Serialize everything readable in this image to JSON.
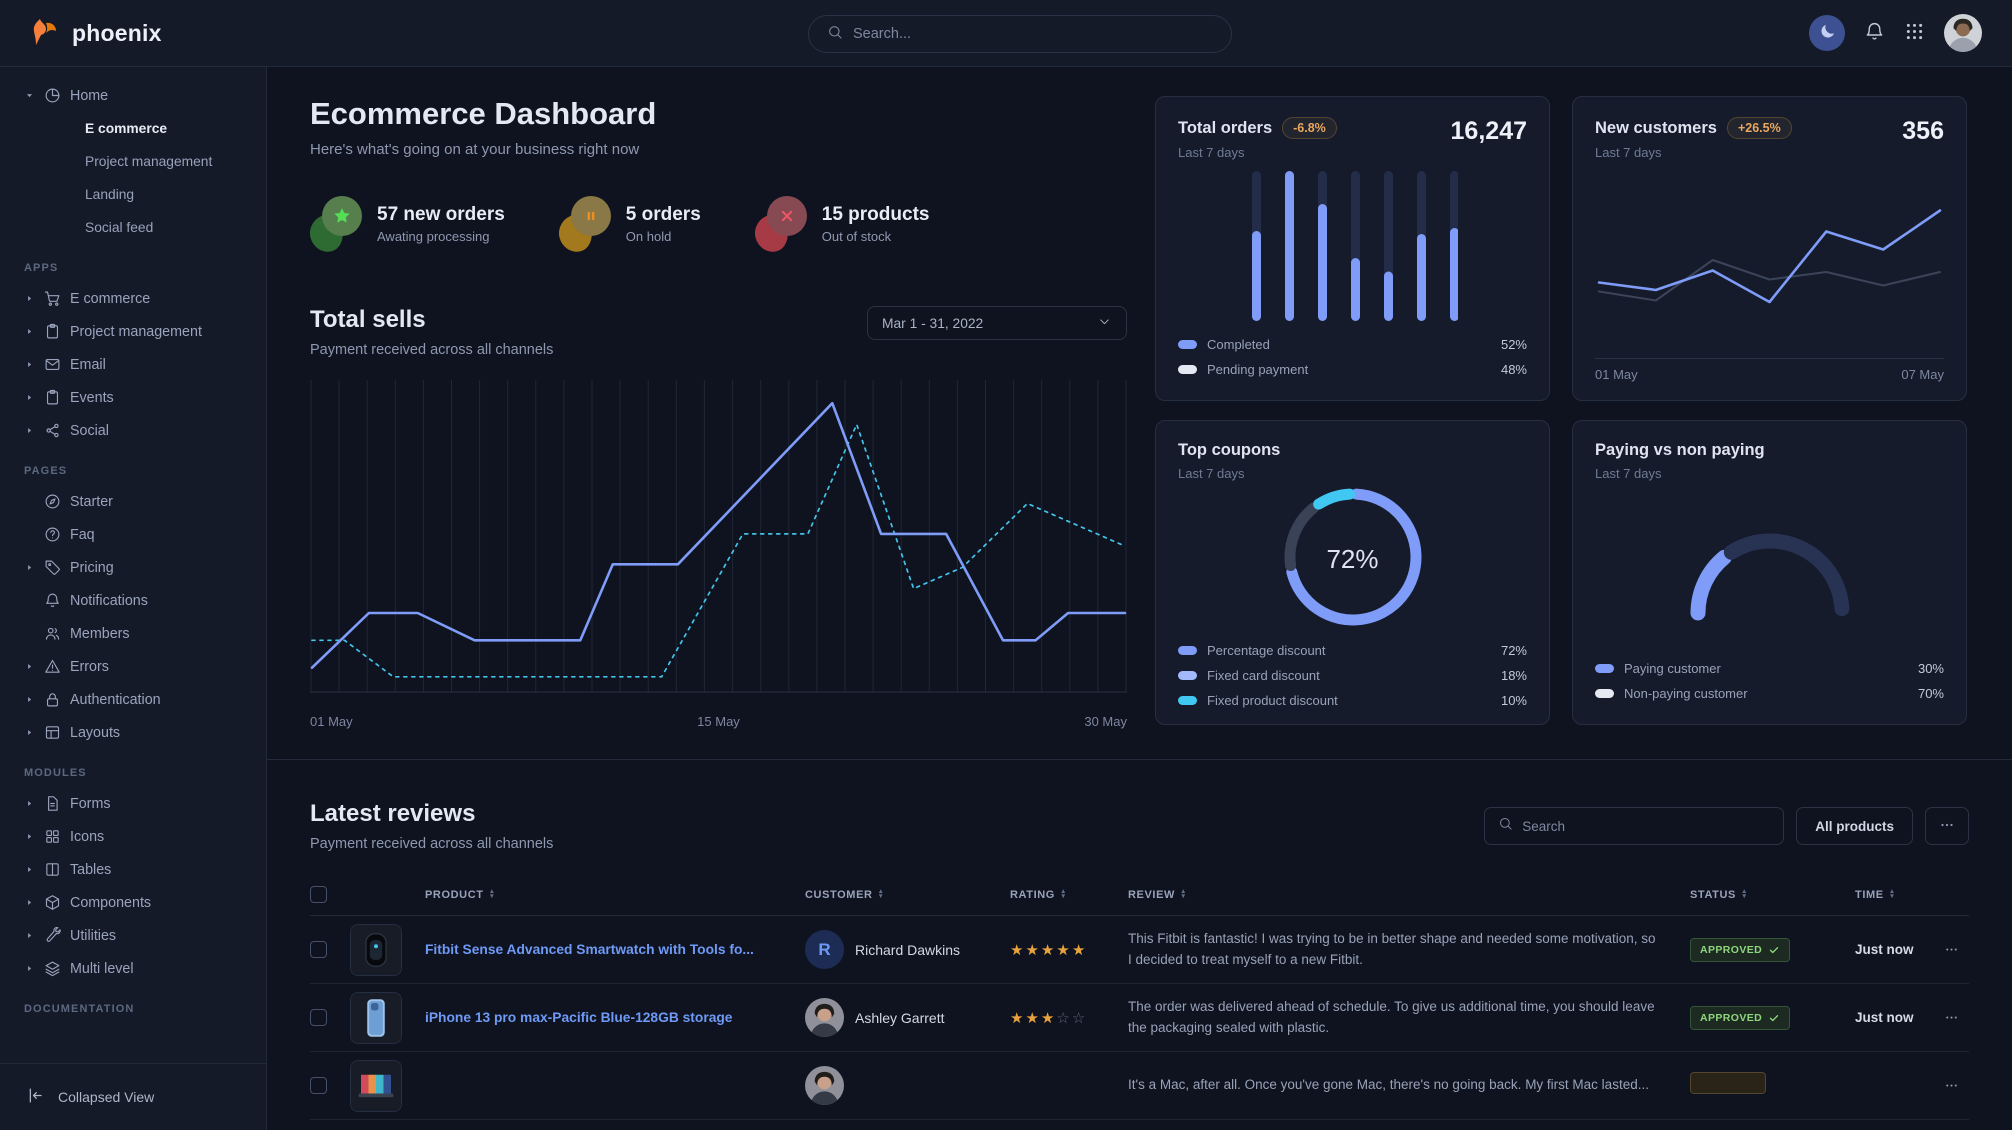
{
  "topbar": {
    "brand": "phoenix",
    "search_placeholder": "Search...",
    "theme_button_color": "#3d5192",
    "icons": [
      "moon-icon",
      "bell-icon",
      "grid-9-icon",
      "user-avatar"
    ]
  },
  "sidebar": {
    "groups": [
      {
        "label": "",
        "items": [
          {
            "label": "Home",
            "icon": "pie-chart",
            "caret": "down",
            "children": [
              {
                "label": "E commerce",
                "active": true
              },
              {
                "label": "Project management",
                "active": false
              },
              {
                "label": "Landing",
                "active": false
              },
              {
                "label": "Social feed",
                "active": false
              }
            ]
          }
        ]
      },
      {
        "label": "APPS",
        "items": [
          {
            "label": "E commerce",
            "icon": "shopping-cart",
            "caret": "right"
          },
          {
            "label": "Project management",
            "icon": "clipboard",
            "caret": "right"
          },
          {
            "label": "Email",
            "icon": "mail",
            "caret": "right"
          },
          {
            "label": "Events",
            "icon": "clipboard",
            "caret": "right"
          },
          {
            "label": "Social",
            "icon": "share",
            "caret": "right"
          }
        ]
      },
      {
        "label": "PAGES",
        "items": [
          {
            "label": "Starter",
            "icon": "compass",
            "caret": ""
          },
          {
            "label": "Faq",
            "icon": "help-circle",
            "caret": ""
          },
          {
            "label": "Pricing",
            "icon": "tag",
            "caret": "right"
          },
          {
            "label": "Notifications",
            "icon": "bell",
            "caret": ""
          },
          {
            "label": "Members",
            "icon": "users",
            "caret": ""
          },
          {
            "label": "Errors",
            "icon": "alert-triangle",
            "caret": "right"
          },
          {
            "label": "Authentication",
            "icon": "lock",
            "caret": "right"
          },
          {
            "label": "Layouts",
            "icon": "layout",
            "caret": "right"
          }
        ]
      },
      {
        "label": "MODULES",
        "items": [
          {
            "label": "Forms",
            "icon": "file-text",
            "caret": "right"
          },
          {
            "label": "Icons",
            "icon": "grid-4",
            "caret": "right"
          },
          {
            "label": "Tables",
            "icon": "columns",
            "caret": "right"
          },
          {
            "label": "Components",
            "icon": "box",
            "caret": "right"
          },
          {
            "label": "Utilities",
            "icon": "wrench",
            "caret": "right"
          },
          {
            "label": "Multi level",
            "icon": "layers",
            "caret": "right"
          }
        ]
      },
      {
        "label": "DOCUMENTATION",
        "items": []
      }
    ],
    "footer": {
      "label": "Collapsed View",
      "icon": "collapse-left"
    }
  },
  "page": {
    "title": "Ecommerce Dashboard",
    "subtitle": "Here's what's going on at your business right now"
  },
  "stats": [
    {
      "value": "57 new orders",
      "label": "Awating processing",
      "icon": "star",
      "accent": "green"
    },
    {
      "value": "5 orders",
      "label": "On hold",
      "icon": "pause",
      "accent": "orange"
    },
    {
      "value": "15 products",
      "label": "Out of stock",
      "icon": "x",
      "accent": "red"
    }
  ],
  "total_sells": {
    "title": "Total sells",
    "subtitle": "Payment received across all channels",
    "date_range": "Mar 1 - 31, 2022"
  },
  "cards": {
    "total_orders": {
      "title": "Total orders",
      "badge": "-6.8%",
      "period": "Last 7 days",
      "value": "16,247",
      "legend": [
        {
          "label": "Completed",
          "value": "52%",
          "color": "#7e9cf8"
        },
        {
          "label": "Pending payment",
          "value": "48%",
          "color": "#e4e9f2"
        }
      ]
    },
    "new_customers": {
      "title": "New customers",
      "badge": "+26.5%",
      "period": "Last 7 days",
      "value": "356"
    },
    "top_coupons": {
      "title": "Top coupons",
      "period": "Last 7 days",
      "legend": [
        {
          "label": "Percentage discount",
          "value": "72%",
          "color": "#7e9cf8"
        },
        {
          "label": "Fixed card discount",
          "value": "18%",
          "color": "#a4b9fb"
        },
        {
          "label": "Fixed product discount",
          "value": "10%",
          "color": "#41c8f2"
        }
      ]
    },
    "paying": {
      "title": "Paying vs non paying",
      "period": "Last 7 days",
      "legend": [
        {
          "label": "Paying customer",
          "value": "30%",
          "color": "#7e9cf8"
        },
        {
          "label": "Non-paying customer",
          "value": "70%",
          "color": "#e4e9f2"
        }
      ]
    }
  },
  "chart_data": [
    {
      "id": "total-sells",
      "type": "line",
      "title": "Total sells",
      "x_axis": {
        "ticks": [
          "01 May",
          "15 May",
          "30 May"
        ]
      },
      "grid": {
        "vertical_lines": 30
      },
      "ylim": [
        0,
        100
      ],
      "series": [
        {
          "name": "Current period",
          "color": "#7e9cf8",
          "style": "solid",
          "points": [
            [
              0,
              8
            ],
            [
              7,
              26
            ],
            [
              13,
              26
            ],
            [
              20,
              17
            ],
            [
              33,
              17
            ],
            [
              37,
              42
            ],
            [
              45,
              42
            ],
            [
              64,
              95
            ],
            [
              70,
              52
            ],
            [
              78,
              52
            ],
            [
              85,
              17
            ],
            [
              89,
              17
            ],
            [
              93,
              26
            ],
            [
              100,
              26
            ]
          ]
        },
        {
          "name": "Previous period",
          "color": "#43c4ea",
          "style": "dashed",
          "points": [
            [
              0,
              17
            ],
            [
              4,
              17
            ],
            [
              10,
              5
            ],
            [
              43,
              5
            ],
            [
              53,
              52
            ],
            [
              61,
              52
            ],
            [
              67,
              88
            ],
            [
              74,
              34
            ],
            [
              80,
              41
            ],
            [
              88,
              62
            ],
            [
              100,
              48
            ]
          ]
        }
      ]
    },
    {
      "id": "total-orders",
      "type": "bar",
      "values": [
        60,
        100,
        78,
        42,
        33,
        58,
        62
      ],
      "max": 100,
      "bar_color": "#7e9cf8",
      "track_color": "#232c49"
    },
    {
      "id": "new-customers",
      "type": "line",
      "x_axis": {
        "ticks": [
          "01 May",
          "07 May"
        ]
      },
      "ylim": [
        0,
        100
      ],
      "series": [
        {
          "name": "New customers",
          "color": "#7e9cf8",
          "style": "solid",
          "y": [
            35,
            30,
            43,
            22,
            69,
            57,
            83
          ]
        },
        {
          "name": "Previous period",
          "color": "#3c4459",
          "style": "solid",
          "y": [
            29,
            23,
            50,
            37,
            42,
            33,
            42
          ]
        }
      ]
    },
    {
      "id": "top-coupons",
      "type": "donut",
      "center_label": "72%",
      "slices": [
        {
          "label": "Percentage discount",
          "value": 72,
          "color": "#7e9cf8"
        },
        {
          "label": "Fixed card discount",
          "value": 18,
          "color": "#3a4258"
        },
        {
          "label": "Fixed product discount",
          "value": 10,
          "color": "#41c8f2"
        }
      ]
    },
    {
      "id": "paying-gauge",
      "type": "gauge",
      "segments": [
        {
          "label": "Paying customer",
          "value": 30,
          "color": "#7e9cf8"
        },
        {
          "label": "Non-paying customer",
          "value": 70,
          "color": "#283253"
        }
      ]
    }
  ],
  "reviews": {
    "title": "Latest reviews",
    "subtitle": "Payment received across all channels",
    "search_placeholder": "Search",
    "filter_button": "All products",
    "more_button": "...",
    "columns": [
      "PRODUCT",
      "CUSTOMER",
      "RATING",
      "REVIEW",
      "STATUS",
      "TIME"
    ],
    "rows": [
      {
        "product": "Fitbit Sense Advanced Smartwatch with Tools fo...",
        "thumb": "smartwatch",
        "customer": "Richard Dawkins",
        "avatar": "initial",
        "avatar_text": "R",
        "rating": 5,
        "review": "This Fitbit is fantastic! I was trying to be in better shape and needed some motivation, so I decided to treat myself to a new Fitbit.",
        "status": "APPROVED",
        "status_type": "success",
        "time": "Just now"
      },
      {
        "product": "iPhone 13 pro max-Pacific Blue-128GB storage",
        "thumb": "phone",
        "customer": "Ashley Garrett",
        "avatar": "photo",
        "avatar_text": "",
        "rating": 3,
        "review": "The order was delivered ahead of schedule. To give us additional time, you should leave the packaging sealed with plastic.",
        "status": "APPROVED",
        "status_type": "success",
        "time": "Just now"
      },
      {
        "product": "",
        "thumb": "laptop",
        "customer": "",
        "avatar": "photo",
        "avatar_text": "",
        "rating": null,
        "review": "It's a Mac, after all. Once you've gone Mac, there's no going back. My first Mac lasted...",
        "status": "",
        "status_type": "warning",
        "time": ""
      }
    ]
  }
}
